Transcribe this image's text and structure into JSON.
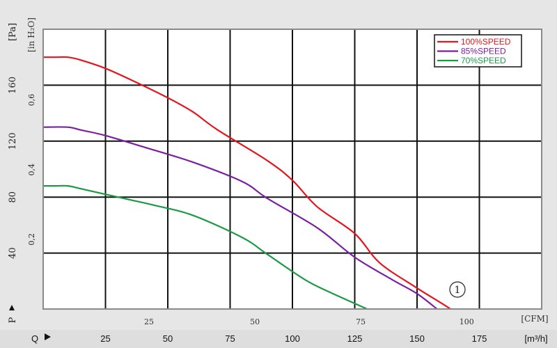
{
  "chart_data": {
    "type": "line",
    "units": {
      "pa": "[Pa]",
      "inh2o": "[in H₂O]",
      "cfm": "[CFM]",
      "m3h": "[m³/h]",
      "p_axis": "P",
      "q_axis": "Q"
    },
    "x_m3h": {
      "range": [
        0,
        200
      ],
      "ticks": [
        25,
        50,
        75,
        100,
        125,
        150,
        175
      ]
    },
    "x_cfm": {
      "ticks": [
        25,
        50,
        75,
        100
      ]
    },
    "y_pa": {
      "range": [
        0,
        200
      ],
      "ticks": [
        40,
        80,
        120,
        160
      ]
    },
    "y_inh2o": {
      "ticks": [
        0.2,
        0.4,
        0.6
      ]
    },
    "grid": true,
    "legend": {
      "placement": "top-right",
      "items": [
        {
          "label": "100%SPEED",
          "color": "#e3151d"
        },
        {
          "label": "85%SPEED",
          "color": "#7a1fa2"
        },
        {
          "label": "70%SPEED",
          "color": "#1a9a45"
        }
      ]
    },
    "series": [
      {
        "name": "100%SPEED",
        "color": "#e3151d",
        "points": [
          [
            0,
            180
          ],
          [
            5,
            180
          ],
          [
            10,
            180
          ],
          [
            15,
            178
          ],
          [
            25,
            172
          ],
          [
            35,
            164
          ],
          [
            50,
            151
          ],
          [
            60,
            141
          ],
          [
            70,
            128
          ],
          [
            90,
            106
          ],
          [
            100,
            92
          ],
          [
            110,
            73
          ],
          [
            125,
            54
          ],
          [
            135,
            33
          ],
          [
            150,
            15
          ],
          [
            165,
            -2
          ],
          [
            175,
            -18
          ]
        ]
      },
      {
        "name": "85%SPEED",
        "color": "#7a1fa2",
        "points": [
          [
            0,
            130
          ],
          [
            10,
            130
          ],
          [
            15,
            128
          ],
          [
            25,
            124
          ],
          [
            40,
            116
          ],
          [
            60,
            105
          ],
          [
            80,
            91
          ],
          [
            90,
            79
          ],
          [
            110,
            58
          ],
          [
            125,
            37
          ],
          [
            140,
            21
          ],
          [
            150,
            11
          ],
          [
            158,
            0
          ]
        ]
      },
      {
        "name": "70%SPEED",
        "color": "#1a9a45",
        "points": [
          [
            0,
            88
          ],
          [
            5,
            88
          ],
          [
            10,
            88
          ],
          [
            15,
            86
          ],
          [
            25,
            82
          ],
          [
            35,
            78
          ],
          [
            45,
            74
          ],
          [
            60,
            67
          ],
          [
            80,
            51
          ],
          [
            90,
            39
          ],
          [
            105,
            21
          ],
          [
            115,
            12
          ],
          [
            130,
            0
          ]
        ]
      }
    ],
    "annotation": "①"
  }
}
